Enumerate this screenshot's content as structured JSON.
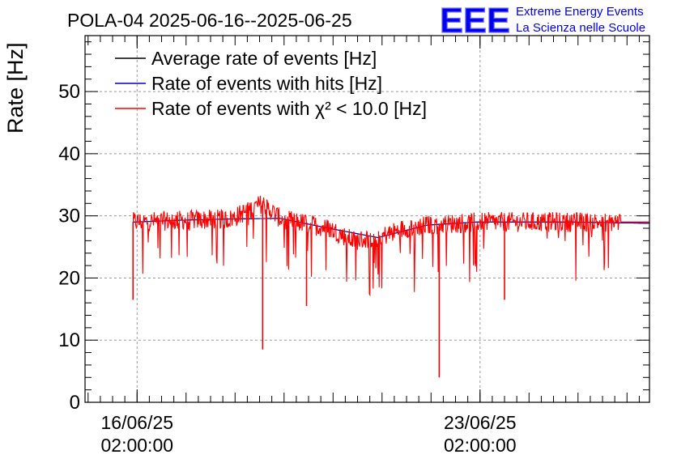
{
  "chart_data": {
    "type": "line",
    "title": "POLA-04 2025-06-16--2025-06-25",
    "xlabel": "",
    "ylabel": "Rate [Hz]",
    "ylim": [
      0,
      59
    ],
    "yticks": [
      0,
      10,
      20,
      30,
      40,
      50
    ],
    "xticks": [
      {
        "date": "16/06/25",
        "time": "02:00:00",
        "x": "2025-06-16T02:00:00"
      },
      {
        "date": "23/06/25",
        "time": "02:00:00",
        "x": "2025-06-23T02:00:00"
      }
    ],
    "xlim": [
      "2025-06-15T00:30:00",
      "2025-06-26T13:00:00"
    ],
    "grid": true,
    "legend_position": "top-left",
    "series": [
      {
        "name": "Average rate of events [Hz]",
        "color": "#000000",
        "x": [
          "2025-06-16T00:00:00",
          "2025-06-17T00:00:00",
          "2025-06-18T00:00:00",
          "2025-06-19T00:00:00",
          "2025-06-20T00:00:00",
          "2025-06-21T00:00:00",
          "2025-06-22T00:00:00",
          "2025-06-23T00:00:00",
          "2025-06-24T00:00:00",
          "2025-06-25T00:00:00",
          "2025-06-26T13:00:00"
        ],
        "values": [
          29.0,
          29.3,
          29.5,
          29.6,
          28.0,
          26.5,
          28.5,
          29.0,
          29.0,
          29.0,
          28.8
        ]
      },
      {
        "name": "Rate of events with hits [Hz]",
        "color": "#0000cc",
        "x": [
          "2025-06-16T00:00:00",
          "2025-06-17T00:00:00",
          "2025-06-18T00:00:00",
          "2025-06-19T00:00:00",
          "2025-06-20T00:00:00",
          "2025-06-21T00:00:00",
          "2025-06-22T00:00:00",
          "2025-06-23T00:00:00",
          "2025-06-24T00:00:00",
          "2025-06-25T00:00:00",
          "2025-06-26T13:00:00"
        ],
        "values": [
          29.0,
          29.3,
          29.5,
          29.6,
          28.0,
          26.5,
          28.5,
          29.0,
          29.0,
          29.0,
          28.8
        ]
      },
      {
        "name": "Rate of events with χ² < 10.0 [Hz]",
        "color": "#ff0000",
        "x": [
          "2025-06-16T00:00:00",
          "2025-06-17T00:00:00",
          "2025-06-18T00:00:00",
          "2025-06-18T15:30:00",
          "2025-06-19T00:00:00",
          "2025-06-20T00:00:00",
          "2025-06-20T12:00:00",
          "2025-06-21T00:00:00",
          "2025-06-21T13:00:00",
          "2025-06-22T00:00:00",
          "2025-06-23T00:00:00",
          "2025-06-24T00:00:00",
          "2025-06-25T00:00:00",
          "2025-06-25T23:00:00"
        ],
        "values": [
          29.0,
          29.3,
          29.5,
          32.0,
          29.6,
          28.0,
          26.0,
          26.5,
          28.0,
          28.5,
          29.0,
          29.0,
          29.0,
          29.0
        ],
        "dips": [
          {
            "x": "2025-06-16T00:00:00",
            "y": 16.5
          },
          {
            "x": "2025-06-18T15:30:00",
            "y": 8.5
          },
          {
            "x": "2025-06-19T13:00:00",
            "y": 15.5
          },
          {
            "x": "2025-06-22T06:00:00",
            "y": 4.0
          },
          {
            "x": "2025-06-23T14:00:00",
            "y": 16.5
          }
        ]
      }
    ]
  },
  "logo": {
    "text": "EEE",
    "line1": "Extreme Energy Events",
    "line2": "La Scienza nelle Scuole",
    "color": "#0000ee"
  }
}
